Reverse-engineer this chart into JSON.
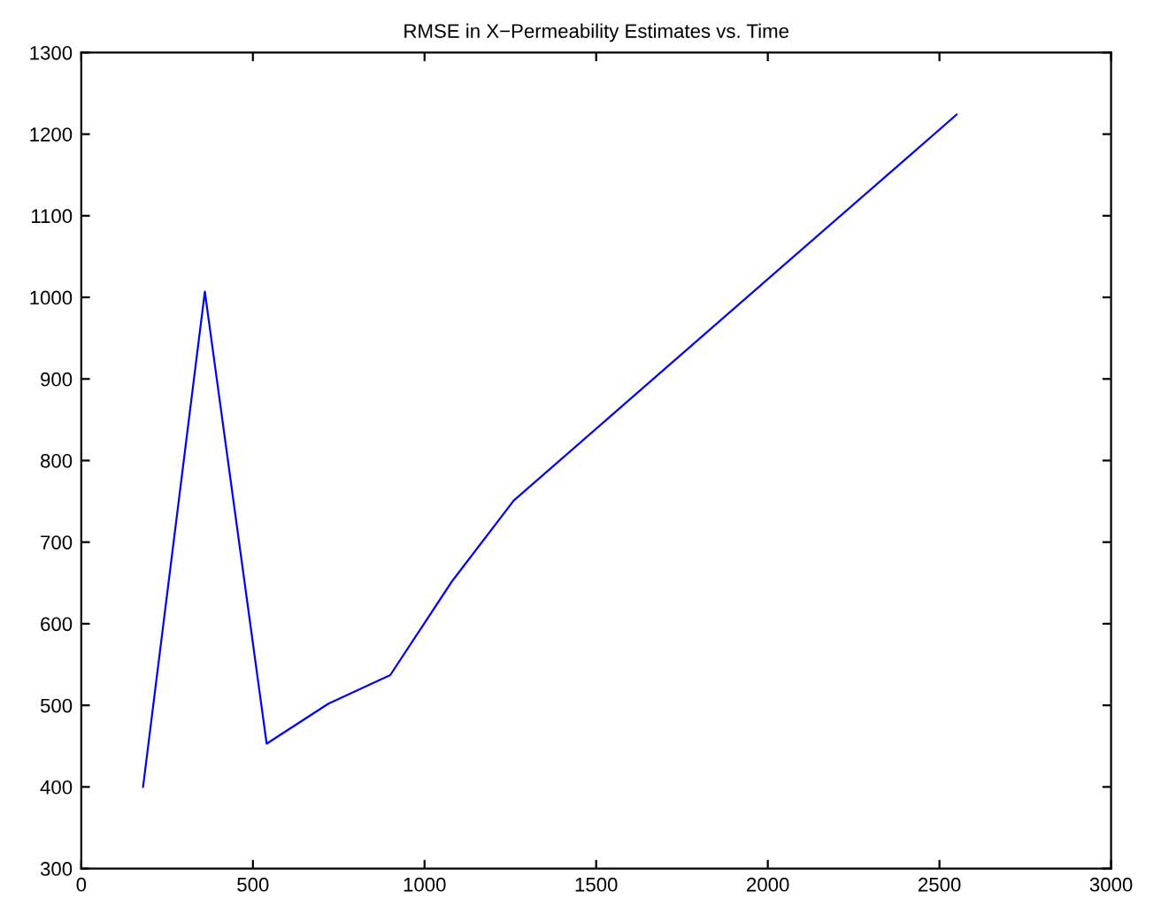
{
  "chart_data": {
    "type": "line",
    "title": "RMSE in X−Permeability Estimates vs. Time",
    "x": [
      180,
      360,
      540,
      720,
      900,
      1080,
      1260,
      2550
    ],
    "series": [
      {
        "color": "#0000ff",
        "values": [
          400,
          1007,
          453,
          502,
          537,
          652,
          751,
          1224
        ]
      }
    ],
    "xlim": [
      0,
      3000
    ],
    "xticks": [
      0,
      500,
      1000,
      1500,
      2000,
      2500,
      3000
    ],
    "ylim": [
      300,
      1300
    ],
    "yticks": [
      300,
      400,
      500,
      600,
      700,
      800,
      900,
      1000,
      1100,
      1200,
      1300
    ],
    "grid": false,
    "legend": false,
    "marker": "none",
    "line_style": "solid"
  }
}
